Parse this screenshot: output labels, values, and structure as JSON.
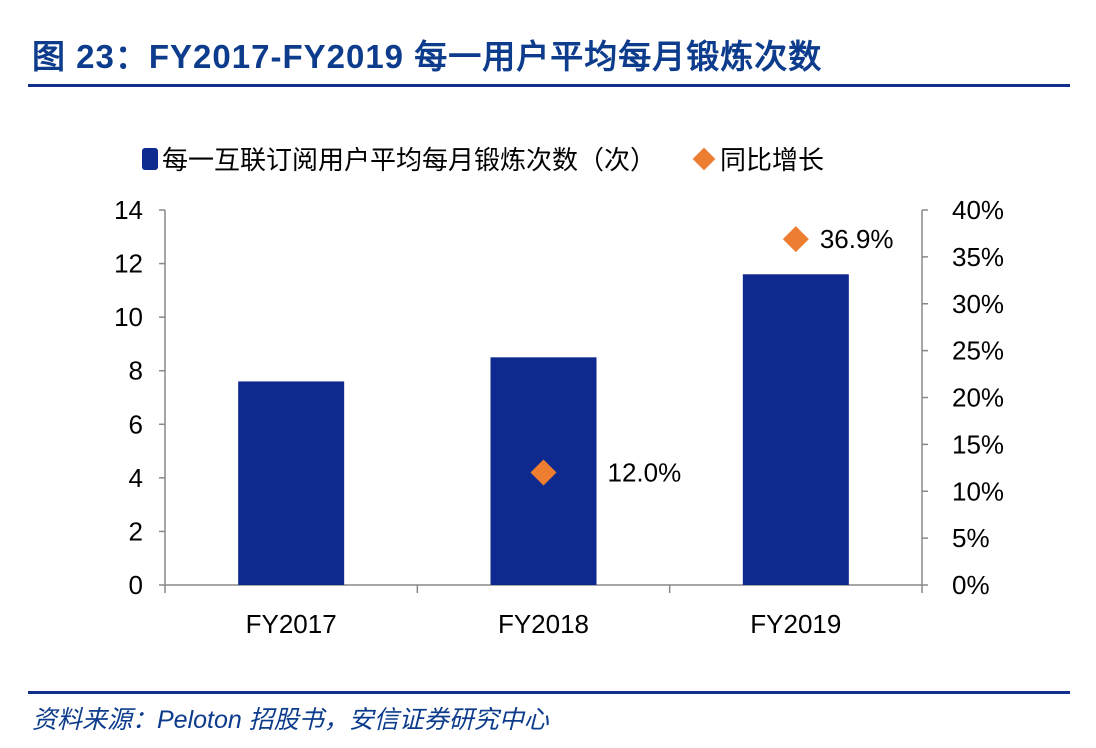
{
  "header": {
    "title": "图 23：FY2017-FY2019 每一用户平均每月锻炼次数"
  },
  "source": "资料来源：Peloton 招股书，安信证券研究中心",
  "chart_data": {
    "type": "bar",
    "categories": [
      "FY2017",
      "FY2018",
      "FY2019"
    ],
    "series": [
      {
        "name": "每一互联订阅用户平均每月锻炼次数（次）",
        "type": "bar",
        "axis": "left",
        "values": [
          7.6,
          8.5,
          11.6
        ],
        "color": "#0f2a8f"
      },
      {
        "name": "同比增长",
        "type": "scatter",
        "axis": "right",
        "values": [
          null,
          12.0,
          36.9
        ],
        "labels": [
          "",
          "12.0%",
          "36.9%"
        ],
        "color": "#ed7d31",
        "marker": "diamond"
      }
    ],
    "left_axis": {
      "ylim": [
        0,
        14
      ],
      "ticks": [
        "0",
        "2",
        "4",
        "6",
        "8",
        "10",
        "12",
        "14"
      ]
    },
    "right_axis": {
      "ylim": [
        0,
        40
      ],
      "ticks": [
        "0%",
        "5%",
        "10%",
        "15%",
        "20%",
        "25%",
        "30%",
        "35%",
        "40%"
      ]
    },
    "legend": "top",
    "grid": false
  }
}
